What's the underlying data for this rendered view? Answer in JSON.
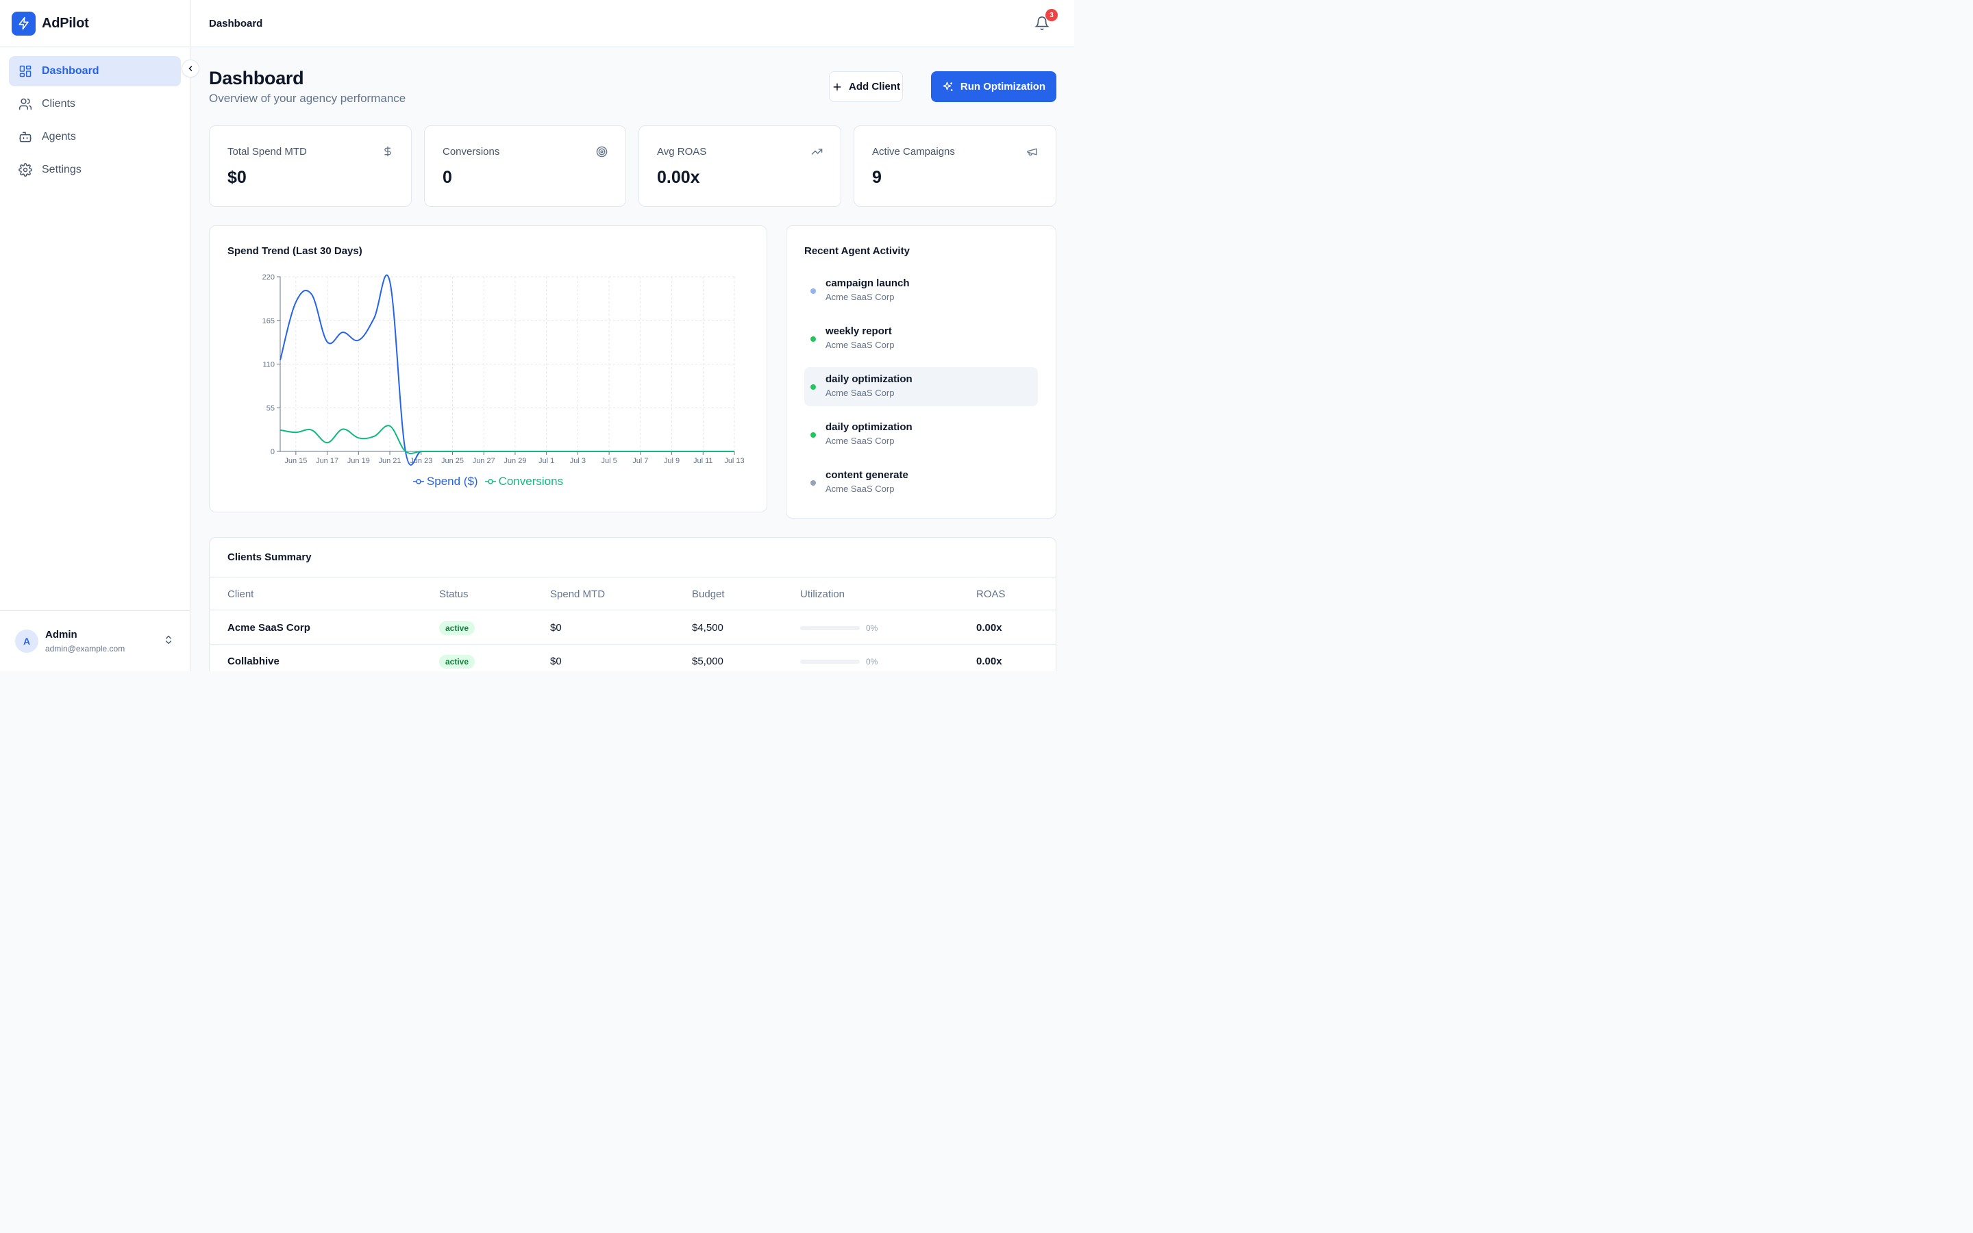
{
  "app": {
    "name": "AdPilot",
    "topbar_title": "Dashboard",
    "notification_count": "3"
  },
  "colors": {
    "accent": "#2563eb",
    "spend_line": "#2563eb",
    "conversions_line": "#10b981",
    "badge": "#ef4444"
  },
  "sidebar": {
    "items": [
      {
        "label": "Dashboard",
        "icon": "layout-grid-icon",
        "active": true
      },
      {
        "label": "Clients",
        "icon": "users-icon"
      },
      {
        "label": "Agents",
        "icon": "bot-icon"
      },
      {
        "label": "Settings",
        "icon": "gear-icon"
      }
    ],
    "user": {
      "initial": "A",
      "name": "Admin",
      "email": "admin@example.com"
    }
  },
  "header": {
    "title": "Dashboard",
    "subtitle": "Overview of your agency performance",
    "add_client_label": "Add Client",
    "run_optimization_label": "Run Optimization"
  },
  "stats": [
    {
      "label": "Total Spend MTD",
      "value": "$0",
      "icon": "dollar-icon"
    },
    {
      "label": "Conversions",
      "value": "0",
      "icon": "target-icon"
    },
    {
      "label": "Avg ROAS",
      "value": "0.00x",
      "icon": "trending-up-icon"
    },
    {
      "label": "Active Campaigns",
      "value": "9",
      "icon": "megaphone-icon"
    }
  ],
  "spend_trend": {
    "title": "Spend Trend (Last 30 Days)",
    "legend": [
      "Spend ($)",
      "Conversions"
    ]
  },
  "chart_data": {
    "type": "line",
    "title": "Spend Trend (Last 30 Days)",
    "x": [
      "Jun 14",
      "Jun 15",
      "Jun 16",
      "Jun 17",
      "Jun 18",
      "Jun 19",
      "Jun 20",
      "Jun 21",
      "Jun 22",
      "Jun 23",
      "Jun 24",
      "Jun 25",
      "Jun 26",
      "Jun 27",
      "Jun 28",
      "Jun 29",
      "Jun 30",
      "Jul 1",
      "Jul 2",
      "Jul 3",
      "Jul 4",
      "Jul 5",
      "Jul 6",
      "Jul 7",
      "Jul 8",
      "Jul 9",
      "Jul 10",
      "Jul 11",
      "Jul 12",
      "Jul 13"
    ],
    "tick_labels": [
      "Jun 15",
      "Jun 17",
      "Jun 19",
      "Jun 21",
      "Jun 23",
      "Jun 25",
      "Jun 27",
      "Jun 29",
      "Jul 1",
      "Jul 3",
      "Jul 5",
      "Jul 7",
      "Jul 9",
      "Jul 11",
      "Jul 13"
    ],
    "yticks": [
      0,
      55,
      110,
      165,
      220
    ],
    "ylim": [
      0,
      220
    ],
    "grid": true,
    "legend_position": "bottom",
    "series": [
      {
        "name": "Spend ($)",
        "color": "#2563eb",
        "values": [
          115,
          188,
          198,
          138,
          150,
          140,
          168,
          214,
          0,
          0,
          0,
          0,
          0,
          0,
          0,
          0,
          0,
          0,
          0,
          0,
          0,
          0,
          0,
          0,
          0,
          0,
          0,
          0,
          0,
          0
        ]
      },
      {
        "name": "Conversions",
        "color": "#10b981",
        "values": [
          27,
          24,
          27,
          11,
          28,
          17,
          19,
          32,
          0,
          0,
          0,
          0,
          0,
          0,
          0,
          0,
          0,
          0,
          0,
          0,
          0,
          0,
          0,
          0,
          0,
          0,
          0,
          0,
          0,
          0
        ]
      }
    ]
  },
  "activity": {
    "title": "Recent Agent Activity",
    "items": [
      {
        "title": "campaign launch",
        "client": "Acme SaaS Corp",
        "dot": "#93b4f0"
      },
      {
        "title": "weekly report",
        "client": "Acme SaaS Corp",
        "dot": "#22c55e"
      },
      {
        "title": "daily optimization",
        "client": "Acme SaaS Corp",
        "dot": "#22c55e",
        "highlight": true
      },
      {
        "title": "daily optimization",
        "client": "Acme SaaS Corp",
        "dot": "#22c55e"
      },
      {
        "title": "content generate",
        "client": "Acme SaaS Corp",
        "dot": "#94a3b8"
      }
    ]
  },
  "clients_summary": {
    "title": "Clients Summary",
    "columns": [
      "Client",
      "Status",
      "Spend MTD",
      "Budget",
      "Utilization",
      "ROAS"
    ],
    "rows": [
      {
        "client": "Acme SaaS Corp",
        "status": "active",
        "spend": "$0",
        "budget": "$4,500",
        "utilization": "0%",
        "utilization_value": 0,
        "roas": "0.00x"
      },
      {
        "client": "Collabhive",
        "status": "active",
        "spend": "$0",
        "budget": "$5,000",
        "utilization": "0%",
        "utilization_value": 0,
        "roas": "0.00x"
      }
    ]
  }
}
